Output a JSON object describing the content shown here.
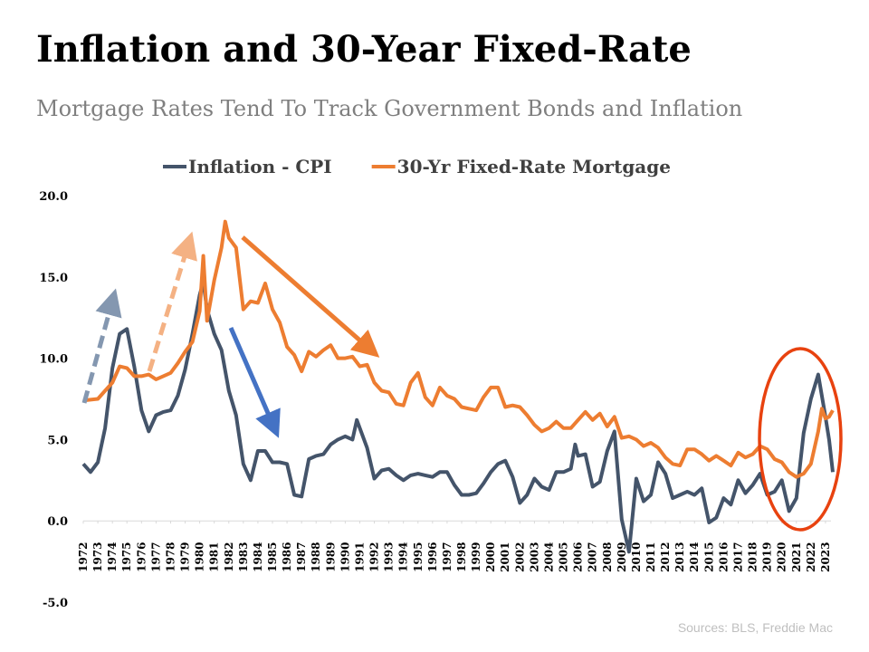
{
  "chart_data": {
    "type": "line",
    "title": "Inflation and 30-Year Fixed-Rate",
    "subtitle": "Mortgage Rates Tend To Track Government Bonds and Inflation",
    "source": "Sources: BLS, Freddie Mac",
    "legend": "top",
    "grid": false,
    "xlim": [
      1972,
      2024
    ],
    "xticks": [
      1972,
      1973,
      1974,
      1975,
      1976,
      1977,
      1978,
      1979,
      1980,
      1981,
      1982,
      1983,
      1984,
      1985,
      1986,
      1987,
      1988,
      1989,
      1990,
      1991,
      1992,
      1993,
      1994,
      1995,
      1996,
      1997,
      1998,
      1999,
      2000,
      2001,
      2002,
      2003,
      2004,
      2005,
      2006,
      2007,
      2008,
      2009,
      2010,
      2011,
      2012,
      2013,
      2014,
      2015,
      2016,
      2017,
      2018,
      2019,
      2020,
      2021,
      2022,
      2023
    ],
    "ylim": [
      -5,
      20
    ],
    "yticks": [
      {
        "value": -5,
        "label": "-5.0"
      },
      {
        "value": 0,
        "label": "0.0"
      },
      {
        "value": 5,
        "label": "5.0"
      },
      {
        "value": 10,
        "label": "10.0"
      },
      {
        "value": 15,
        "label": "15.0"
      },
      {
        "value": 20,
        "label": "20.0"
      }
    ],
    "series": [
      {
        "name": "Inflation - CPI",
        "color": "#44546a",
        "x": [
          1972,
          1972.5,
          1973,
          1973.5,
          1974,
          1974.5,
          1975,
          1975.5,
          1976,
          1976.5,
          1977,
          1977.5,
          1978,
          1978.5,
          1979,
          1979.5,
          1980,
          1980.25,
          1980.5,
          1981,
          1981.5,
          1982,
          1982.5,
          1983,
          1983.5,
          1984,
          1984.5,
          1985,
          1985.5,
          1986,
          1986.5,
          1987,
          1987.5,
          1988,
          1988.5,
          1989,
          1989.5,
          1990,
          1990.5,
          1990.8,
          1991,
          1991.5,
          1992,
          1992.5,
          1993,
          1993.5,
          1994,
          1994.5,
          1995,
          1995.5,
          1996,
          1996.5,
          1997,
          1997.5,
          1998,
          1998.5,
          1999,
          1999.5,
          2000,
          2000.5,
          2001,
          2001.5,
          2002,
          2002.5,
          2003,
          2003.5,
          2004,
          2004.5,
          2005,
          2005.5,
          2005.8,
          2006,
          2006.5,
          2007,
          2007.5,
          2008,
          2008.5,
          2009,
          2009.5,
          2010,
          2010.5,
          2011,
          2011.5,
          2012,
          2012.5,
          2013,
          2013.5,
          2014,
          2014.5,
          2015,
          2015.5,
          2016,
          2016.5,
          2017,
          2017.5,
          2018,
          2018.5,
          2019,
          2019.5,
          2020,
          2020.5,
          2021,
          2021.5,
          2022,
          2022.5,
          2023,
          2023.25,
          2023.5
        ],
        "values": [
          3.5,
          3.0,
          3.6,
          5.7,
          9.4,
          11.5,
          11.8,
          9.5,
          6.8,
          5.5,
          6.5,
          6.7,
          6.8,
          7.7,
          9.3,
          11.5,
          13.9,
          14.7,
          13.0,
          11.5,
          10.5,
          8.0,
          6.5,
          3.5,
          2.5,
          4.3,
          4.3,
          3.6,
          3.6,
          3.5,
          1.6,
          1.5,
          3.8,
          4.0,
          4.1,
          4.7,
          5.0,
          5.2,
          5.0,
          6.2,
          5.7,
          4.5,
          2.6,
          3.1,
          3.2,
          2.8,
          2.5,
          2.8,
          2.9,
          2.8,
          2.7,
          3.0,
          3.0,
          2.2,
          1.6,
          1.6,
          1.7,
          2.3,
          3.0,
          3.5,
          3.7,
          2.7,
          1.1,
          1.6,
          2.6,
          2.1,
          1.9,
          3.0,
          3.0,
          3.2,
          4.7,
          4.0,
          4.1,
          2.1,
          2.4,
          4.3,
          5.5,
          0.1,
          -1.9,
          2.6,
          1.2,
          1.6,
          3.6,
          2.9,
          1.4,
          1.6,
          1.8,
          1.6,
          2.0,
          -0.1,
          0.2,
          1.4,
          1.0,
          2.5,
          1.7,
          2.2,
          2.9,
          1.6,
          1.8,
          2.5,
          0.6,
          1.4,
          5.4,
          7.5,
          9.0,
          6.4,
          5.0,
          3.0
        ]
      },
      {
        "name": "30-Yr Fixed-Rate Mortgage",
        "color": "#ed7d31",
        "x": [
          1972,
          1973,
          1973.5,
          1974,
          1974.5,
          1975,
          1975.5,
          1976,
          1976.5,
          1977,
          1977.5,
          1978,
          1978.5,
          1979,
          1979.5,
          1980,
          1980.25,
          1980.5,
          1981,
          1981.5,
          1981.75,
          1982,
          1982.5,
          1983,
          1983.5,
          1984,
          1984.5,
          1985,
          1985.5,
          1986,
          1986.5,
          1987,
          1987.5,
          1988,
          1988.5,
          1989,
          1989.5,
          1990,
          1990.5,
          1991,
          1991.5,
          1992,
          1992.5,
          1993,
          1993.5,
          1994,
          1994.5,
          1995,
          1995.5,
          1996,
          1996.5,
          1997,
          1997.5,
          1998,
          1998.5,
          1999,
          1999.5,
          2000,
          2000.5,
          2001,
          2001.5,
          2002,
          2002.5,
          2003,
          2003.5,
          2004,
          2004.5,
          2005,
          2005.5,
          2006,
          2006.5,
          2007,
          2007.5,
          2008,
          2008.5,
          2009,
          2009.5,
          2010,
          2010.5,
          2011,
          2011.5,
          2012,
          2012.5,
          2013,
          2013.5,
          2014,
          2014.5,
          2015,
          2015.5,
          2016,
          2016.5,
          2017,
          2017.5,
          2018,
          2018.5,
          2019,
          2019.5,
          2020,
          2020.5,
          2021,
          2021.5,
          2022,
          2022.5,
          2022.75,
          2023,
          2023.25,
          2023.5
        ],
        "values": [
          7.4,
          7.5,
          8.0,
          8.5,
          9.5,
          9.4,
          8.9,
          8.9,
          9.0,
          8.7,
          8.9,
          9.1,
          9.7,
          10.4,
          11.0,
          12.9,
          16.3,
          12.3,
          14.8,
          16.8,
          18.4,
          17.4,
          16.8,
          13.0,
          13.5,
          13.4,
          14.6,
          13.0,
          12.2,
          10.7,
          10.2,
          9.2,
          10.4,
          10.1,
          10.5,
          10.8,
          10.0,
          10.0,
          10.1,
          9.5,
          9.6,
          8.5,
          8.0,
          7.9,
          7.2,
          7.1,
          8.5,
          9.1,
          7.6,
          7.1,
          8.2,
          7.7,
          7.5,
          7.0,
          6.9,
          6.8,
          7.6,
          8.2,
          8.2,
          7.0,
          7.1,
          7.0,
          6.5,
          5.9,
          5.5,
          5.7,
          6.1,
          5.7,
          5.7,
          6.2,
          6.7,
          6.2,
          6.6,
          5.8,
          6.4,
          5.1,
          5.2,
          5.0,
          4.6,
          4.8,
          4.5,
          3.9,
          3.5,
          3.4,
          4.4,
          4.4,
          4.1,
          3.7,
          4.0,
          3.7,
          3.4,
          4.2,
          3.9,
          4.1,
          4.6,
          4.4,
          3.8,
          3.6,
          3.0,
          2.7,
          2.9,
          3.5,
          5.5,
          6.9,
          6.3,
          6.4,
          6.8
        ]
      }
    ]
  }
}
